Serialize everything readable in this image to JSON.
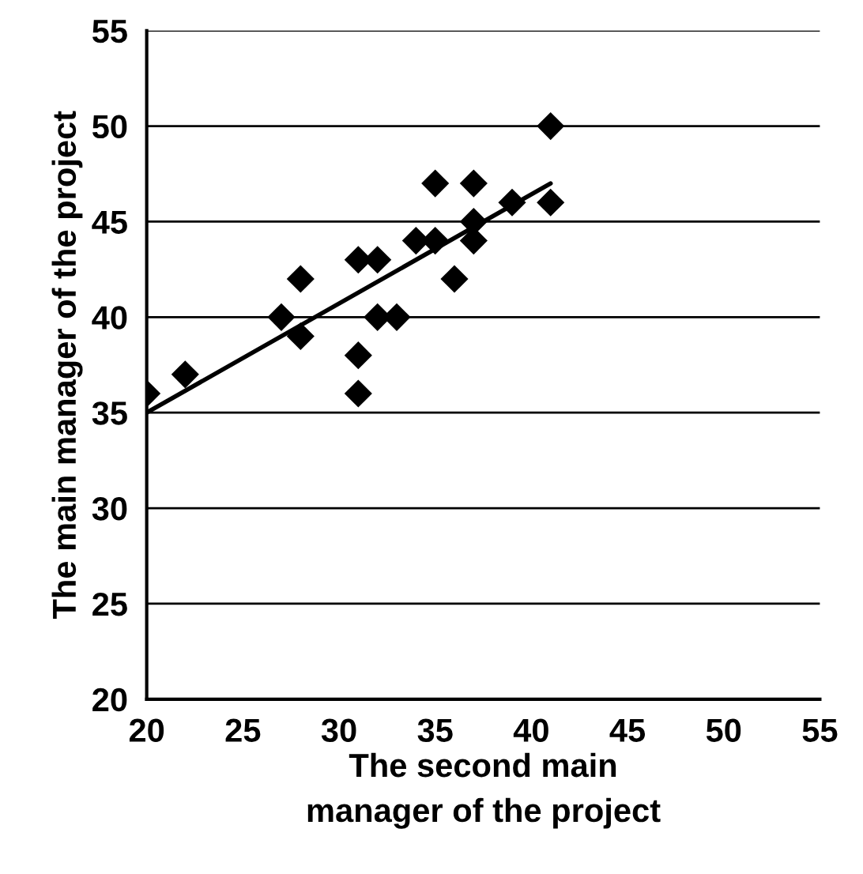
{
  "chart_data": {
    "type": "scatter",
    "xlabel": "The second main\nmanager of the project",
    "ylabel": "The main manager of the project",
    "series": [
      {
        "color": "#000000",
        "marker": "diamond",
        "x": [
          20,
          22,
          27,
          28,
          28,
          31,
          31,
          31,
          32,
          32,
          33,
          34,
          35,
          35,
          36,
          37,
          37,
          37,
          39,
          41,
          41
        ],
        "values": [
          36,
          37,
          40,
          42,
          39,
          43,
          38,
          36,
          43,
          40,
          40,
          44,
          44,
          47,
          42,
          47,
          45,
          44,
          46,
          50,
          46
        ]
      },
      {
        "type": "line",
        "color": "#000000",
        "marker": "none",
        "x": [
          20,
          41
        ],
        "values": [
          35,
          47
        ]
      }
    ],
    "xlim": [
      20,
      55
    ],
    "xticks": [
      20,
      25,
      30,
      35,
      40,
      45,
      50,
      55
    ],
    "ylim": [
      20,
      55
    ],
    "yticks": [
      20,
      25,
      30,
      35,
      40,
      45,
      50,
      55
    ],
    "grid": "y"
  }
}
